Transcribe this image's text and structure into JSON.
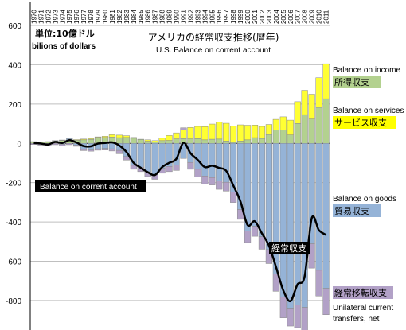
{
  "chart_data": {
    "type": "bar",
    "title": "アメリカの経常収支推移(暦年)",
    "subtitle": "U.S. Balance on corrent account",
    "unit_jp": "単位:10億ドル",
    "unit_en": "bilions of dollars",
    "ylim": [
      -950,
      600
    ],
    "yticks": [
      600,
      400,
      200,
      0,
      -200,
      -400,
      -600,
      -800
    ],
    "ytick_labels": [
      "600",
      "400",
      "200",
      "0",
      "-200",
      "-400",
      "-600",
      "-800"
    ],
    "grid": true,
    "categories": [
      "1970",
      "1971",
      "1972",
      "1973",
      "1974",
      "1975",
      "1976",
      "1977",
      "1978",
      "1979",
      "1980",
      "1981",
      "1982",
      "1983",
      "1984",
      "1985",
      "1986",
      "1987",
      "1988",
      "1989",
      "1990",
      "1991",
      "1992",
      "1993",
      "1994",
      "1995",
      "1996",
      "1997",
      "1998",
      "1999",
      "2000",
      "2001",
      "2002",
      "2003",
      "2004",
      "2005",
      "2006",
      "2007",
      "2008",
      "2009",
      "2010",
      "2011"
    ],
    "series": [
      {
        "name": "Balance on income",
        "name_jp": "所得収支",
        "color": "#b3d18f",
        "values": [
          6,
          7,
          8,
          12,
          15,
          13,
          16,
          18,
          20,
          30,
          30,
          32,
          29,
          30,
          26,
          20,
          11,
          7,
          14,
          15,
          23,
          24,
          23,
          24,
          18,
          21,
          22,
          12,
          5,
          12,
          18,
          29,
          25,
          45,
          67,
          68,
          43,
          101,
          146,
          124,
          183,
          227
        ]
      },
      {
        "name": "Balance on services",
        "name_jp": "サービス収支",
        "color": "#ffff33",
        "values": [
          0,
          1,
          1,
          1,
          2,
          2,
          3,
          4,
          4,
          3,
          6,
          12,
          13,
          9,
          4,
          1,
          7,
          7,
          12,
          25,
          30,
          45,
          58,
          62,
          67,
          77,
          86,
          90,
          82,
          82,
          74,
          64,
          61,
          51,
          55,
          67,
          75,
          111,
          124,
          126,
          151,
          178
        ]
      },
      {
        "name": "Balance on goods",
        "name_jp": "貿易収支",
        "color": "#95b3d7",
        "values": [
          3,
          -2,
          -6,
          1,
          -5,
          9,
          -9,
          -31,
          -34,
          -28,
          -26,
          -28,
          -36,
          -67,
          -112,
          -122,
          -145,
          -160,
          -127,
          -118,
          -111,
          -77,
          -97,
          -132,
          -166,
          -174,
          -191,
          -198,
          -248,
          -337,
          -447,
          -422,
          -475,
          -541,
          -665,
          -783,
          -839,
          -823,
          -835,
          -511,
          -646,
          -738
        ]
      },
      {
        "name": "Unilateral current transfers, net",
        "name_jp": "経常移転収支",
        "color": "#b2a1c7",
        "values": [
          -6,
          -7,
          -8,
          -7,
          -9,
          -7,
          -6,
          -6,
          -6,
          -7,
          -8,
          -11,
          -17,
          -18,
          -20,
          -22,
          -24,
          -23,
          -25,
          -26,
          -27,
          10,
          -35,
          -39,
          -40,
          -38,
          -43,
          -45,
          -53,
          -50,
          -58,
          -51,
          -64,
          -71,
          -88,
          -105,
          -91,
          -115,
          -125,
          -124,
          -131,
          -134
        ]
      },
      {
        "name": "Balance on corrent account",
        "name_jp": "経常収支",
        "color": "#000000",
        "values": [
          2,
          -1,
          -6,
          7,
          2,
          16,
          4,
          -14,
          -15,
          -1,
          2,
          5,
          -11,
          -44,
          -99,
          -124,
          -147,
          -161,
          -121,
          -99,
          -79,
          3,
          -51,
          -84,
          -121,
          -114,
          -125,
          -140,
          -215,
          -296,
          -416,
          -397,
          -458,
          -521,
          -631,
          -748,
          -803,
          -718,
          -677,
          -381,
          -442,
          -466
        ]
      }
    ]
  }
}
